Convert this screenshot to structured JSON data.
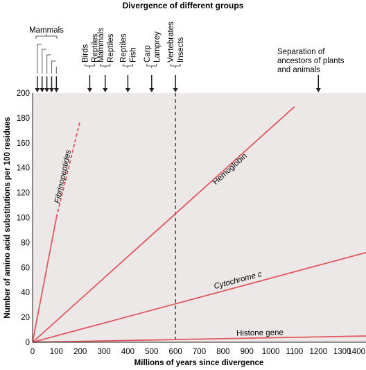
{
  "chart_data": {
    "type": "line",
    "title": "Divergence of different groups",
    "xlabel": "Millions of years since divergence",
    "ylabel": "Number of amino acid substitutions per 100 residues",
    "xlim": [
      0,
      1400
    ],
    "ylim": [
      0,
      200
    ],
    "x_ticks": [
      0,
      100,
      200,
      300,
      400,
      500,
      600,
      700,
      800,
      900,
      1000,
      1100,
      1200,
      1300,
      1400
    ],
    "y_ticks": [
      20,
      40,
      60,
      80,
      100,
      120,
      140,
      160,
      180,
      200
    ],
    "y_zero_label": "0",
    "grid": false,
    "background_color": "#ece8e8",
    "line_color": "#e0575d",
    "series": [
      {
        "name": "Fibrinopeptides",
        "x": [
          0,
          100
        ],
        "y": [
          0,
          100
        ],
        "dashed_to": {
          "x": 200,
          "y": 178
        },
        "label_italic": true
      },
      {
        "name": "Hemoglobin",
        "x": [
          0,
          1100
        ],
        "y": [
          0,
          189
        ],
        "label_italic": false
      },
      {
        "name": "Cytochrome c",
        "x": [
          0,
          1400
        ],
        "y": [
          0,
          72
        ],
        "label_italic": true
      },
      {
        "name": "Histone gene",
        "x": [
          0,
          1400
        ],
        "y": [
          0,
          5
        ],
        "label_italic": false
      }
    ],
    "reference_line": {
      "x": 600,
      "style": "dashed",
      "color": "#231f20"
    },
    "divergence_markers": [
      {
        "labels": [
          "Birds",
          "Reptiles"
        ],
        "x": 240
      },
      {
        "labels": [
          "Mammals",
          "Reptiles"
        ],
        "x": 305
      },
      {
        "labels": [
          "Reptiles",
          "Fish"
        ],
        "x": 400
      },
      {
        "labels": [
          "Carp",
          "Lamprey"
        ],
        "x": 500
      },
      {
        "labels": [
          "Vertebrates",
          "Insects"
        ],
        "x": 600
      }
    ],
    "mammals_group": {
      "label": "Mammals",
      "arrow_x": [
        20,
        40,
        60,
        80,
        100
      ]
    },
    "plants_animals": {
      "text": [
        "Separation of",
        "ancestors of plants",
        "and animals"
      ],
      "x": 1200
    }
  }
}
